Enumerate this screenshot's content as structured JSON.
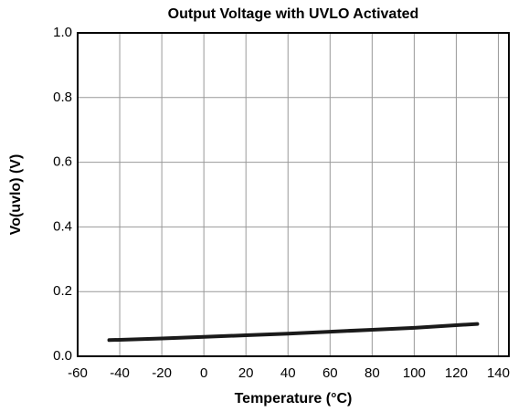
{
  "chart_data": {
    "type": "line",
    "title": "Output Voltage with UVLO Activated",
    "xlabel": "Temperature (°C)",
    "ylabel": "Vo(uvlo) (V)",
    "x": [
      -45,
      -20,
      0,
      20,
      40,
      60,
      80,
      100,
      130
    ],
    "series": [
      {
        "name": "Vo(uvlo)",
        "color": "#1a1a1a",
        "values": [
          0.05,
          0.055,
          0.06,
          0.065,
          0.07,
          0.076,
          0.082,
          0.088,
          0.1
        ]
      }
    ],
    "xlim": [
      -60,
      145
    ],
    "xticks": [
      -60,
      -40,
      -20,
      0,
      20,
      40,
      60,
      80,
      100,
      120,
      140
    ],
    "ylim": [
      0,
      1
    ],
    "yticks": [
      {
        "value": 0,
        "label": "0.0"
      },
      0.2,
      0.4,
      0.6,
      0.8,
      {
        "value": 1,
        "label": "1.0"
      }
    ],
    "grid": true
  }
}
